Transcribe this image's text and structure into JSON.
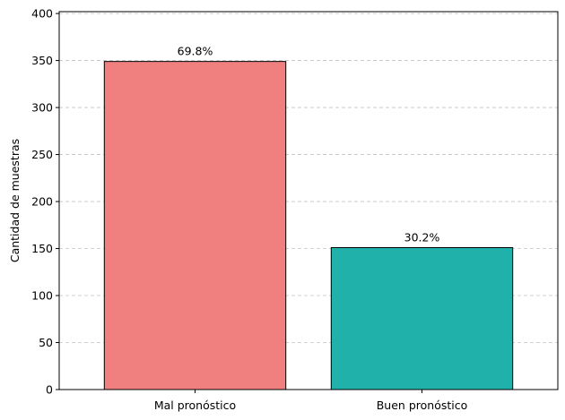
{
  "chart_data": {
    "type": "bar",
    "title": "",
    "xlabel": "",
    "ylabel": "Cantidad de muestras",
    "categories": [
      "Mal pronóstico",
      "Buen pronóstico"
    ],
    "values": [
      349,
      151
    ],
    "data_labels": [
      "69.8%",
      "30.2%"
    ],
    "colors": [
      "#f08080",
      "#20b2aa"
    ],
    "ylim": [
      0,
      402
    ],
    "yticks": [
      0,
      50,
      100,
      150,
      200,
      250,
      300,
      350,
      400
    ],
    "grid": "y-dashed",
    "legend": "none"
  }
}
